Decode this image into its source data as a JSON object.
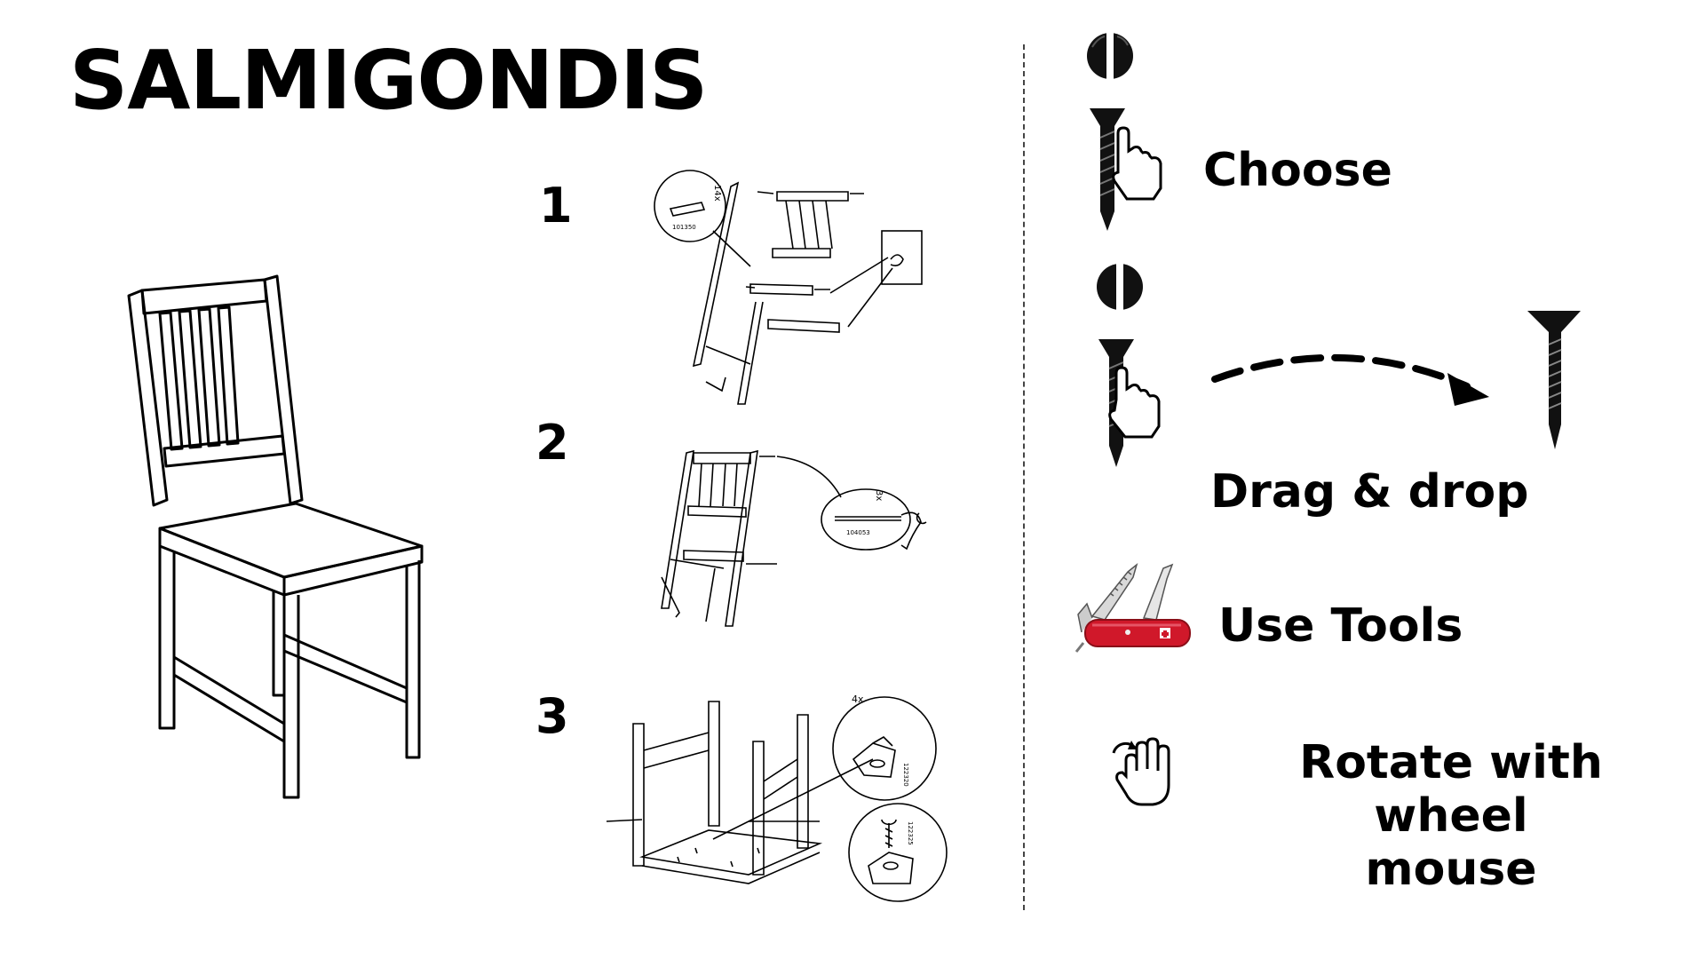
{
  "title": "SALMIGONDIS",
  "steps": [
    {
      "number": "1",
      "qty": "14x",
      "part": "101350"
    },
    {
      "number": "2",
      "qty": "3x",
      "part": "104053"
    },
    {
      "number": "3",
      "qty": "4x",
      "part_a": "122320",
      "part_b": "122325"
    }
  ],
  "controls": {
    "choose": {
      "label": "Choose",
      "icon": "screw-hand-cursor-icon"
    },
    "drag": {
      "label": "Drag & drop",
      "icon": "dashed-arrow-icon"
    },
    "tools": {
      "label": "Use Tools",
      "icon": "swiss-army-knife-icon"
    },
    "rotate": {
      "label_line1": "Rotate with wheel",
      "label_line2": "mouse",
      "icon": "rotate-hand-icon"
    }
  },
  "colors": {
    "knife_red": "#d0182a",
    "ink": "#000000"
  }
}
